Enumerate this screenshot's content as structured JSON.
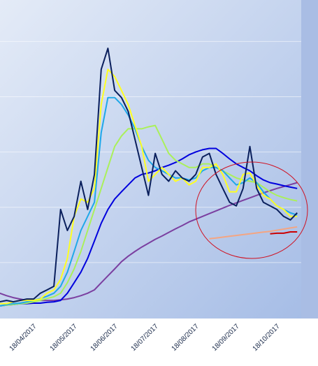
{
  "chart_data": {
    "type": "line",
    "categories": [
      null,
      null,
      null,
      null,
      null,
      "18/04/2017",
      null,
      null,
      null,
      null,
      null,
      "18/05/2017",
      null,
      null,
      null,
      null,
      null,
      "18/06/2017",
      null,
      null,
      null,
      null,
      null,
      "18/07/2017",
      null,
      null,
      null,
      null,
      null,
      "18/08/2017",
      null,
      null,
      null,
      null,
      null,
      "18/09/2017",
      null,
      null,
      null,
      null,
      null,
      "18/10/2017",
      null,
      null,
      null
    ],
    "series": [
      {
        "color": "#7b3fa0",
        "values": [
          8.9,
          8,
          7.3,
          6.8,
          6.3,
          6.3,
          6.3,
          6.3,
          6.3,
          6.5,
          6.8,
          7.3,
          8,
          8.9,
          10.1,
          12.7,
          15.2,
          17.7,
          20.3,
          22.3,
          24,
          25.6,
          27,
          28.4,
          29.6,
          30.9,
          32.2,
          33.4,
          34.7,
          35.7,
          36.7,
          37.7,
          38.7,
          39.7,
          40.7,
          41.6,
          42.5,
          43.4,
          44.3,
          45.2,
          46,
          46.8,
          47.5,
          48.2,
          48.9
        ]
      },
      {
        "color": "#f4a582",
        "values": [
          null,
          null,
          null,
          null,
          null,
          null,
          null,
          null,
          null,
          null,
          null,
          null,
          null,
          null,
          null,
          null,
          null,
          null,
          null,
          null,
          null,
          null,
          null,
          null,
          null,
          null,
          null,
          null,
          null,
          null,
          null,
          28.6,
          28.9,
          29.2,
          29.5,
          29.8,
          30.1,
          30.4,
          30.7,
          31,
          31.3,
          31.7,
          32.1,
          32.5,
          32.9
        ]
      },
      {
        "color": "#cc0000",
        "values": [
          null,
          null,
          null,
          null,
          null,
          null,
          null,
          null,
          null,
          null,
          null,
          null,
          null,
          null,
          null,
          null,
          null,
          null,
          null,
          null,
          null,
          null,
          null,
          null,
          null,
          null,
          null,
          null,
          null,
          null,
          null,
          null,
          null,
          null,
          null,
          null,
          null,
          null,
          null,
          null,
          30.4,
          30.6,
          30.6,
          31.1,
          31.1
        ]
      },
      {
        "color": "#0000dd",
        "values": [
          4.3,
          4.6,
          4.8,
          5.1,
          5.1,
          5.3,
          5.3,
          5.6,
          5.8,
          6.3,
          8.9,
          12.7,
          16.5,
          21.5,
          27.8,
          34.2,
          39.2,
          43,
          45.6,
          48.1,
          50.6,
          51.9,
          52.4,
          53.2,
          54.4,
          55.2,
          56.2,
          57.5,
          59,
          60,
          60.8,
          61.3,
          61.3,
          59.5,
          57.5,
          55.7,
          54.4,
          53.2,
          51.4,
          49.9,
          48.9,
          48.4,
          47.8,
          47.3,
          46.8
        ]
      },
      {
        "color": "#aaf05a",
        "values": [
          4.3,
          4.6,
          4.8,
          5.1,
          5.3,
          5.8,
          6.3,
          7,
          7.6,
          8.9,
          12.7,
          17.7,
          24,
          31.6,
          39.2,
          46.8,
          54.4,
          62,
          65.8,
          68.4,
          68.4,
          68.4,
          69.1,
          69.6,
          64.6,
          59.5,
          57,
          55.7,
          54.4,
          54.4,
          55.7,
          55.7,
          54.4,
          53.2,
          51.9,
          50.6,
          49.9,
          49.4,
          48.9,
          47.3,
          45.6,
          44.3,
          43.5,
          42.8,
          42.3
        ]
      },
      {
        "color": "#1fa8e8",
        "values": [
          4.3,
          4.8,
          5.1,
          5.3,
          5.8,
          6.3,
          7,
          7.8,
          8.9,
          11.4,
          16.5,
          24,
          31.6,
          36.7,
          41.8,
          67,
          79.7,
          79.7,
          77.2,
          73.4,
          68.4,
          62,
          57,
          54.4,
          53.2,
          51.9,
          50.6,
          50.6,
          49.9,
          50.6,
          53.2,
          54.4,
          54.4,
          53.2,
          50.6,
          48.1,
          48.9,
          50.6,
          48.9,
          45.6,
          43,
          40.5,
          39.2,
          38,
          37.2
        ]
      },
      {
        "color": "#ffff20",
        "values": [
          5.1,
          5.1,
          5.8,
          6.3,
          6.3,
          6.3,
          6.8,
          8.9,
          10.1,
          13.9,
          21.5,
          36.7,
          43,
          41.8,
          46.8,
          77.2,
          89.9,
          87.3,
          82.3,
          77.2,
          69.6,
          62,
          49.4,
          51.9,
          54.4,
          51.9,
          49.4,
          50.6,
          48.1,
          49.4,
          54.4,
          54.4,
          55.7,
          51.9,
          45.6,
          45.6,
          51.9,
          52.4,
          48.1,
          44.3,
          43,
          40.5,
          39.2,
          36.7,
          36.7
        ]
      },
      {
        "color": "#0a1f5c",
        "values": [
          5.8,
          6.3,
          5.8,
          6.3,
          6.8,
          6.8,
          8.9,
          10.1,
          11.4,
          39.2,
          31.6,
          36.7,
          49.4,
          39.2,
          51.9,
          89.9,
          97.5,
          82.3,
          79.7,
          74.7,
          64.6,
          54.4,
          44.3,
          59.5,
          51.9,
          49.4,
          53.2,
          50.6,
          49.4,
          51.9,
          58.2,
          59.5,
          51.9,
          46.8,
          41.8,
          40.5,
          46.8,
          62,
          46.8,
          41.8,
          40.5,
          39.2,
          36.7,
          35.4,
          38
        ]
      }
    ],
    "ylim": [
      0,
      115
    ],
    "yticks": [
      20,
      40,
      60,
      80,
      100
    ],
    "grid": true
  }
}
